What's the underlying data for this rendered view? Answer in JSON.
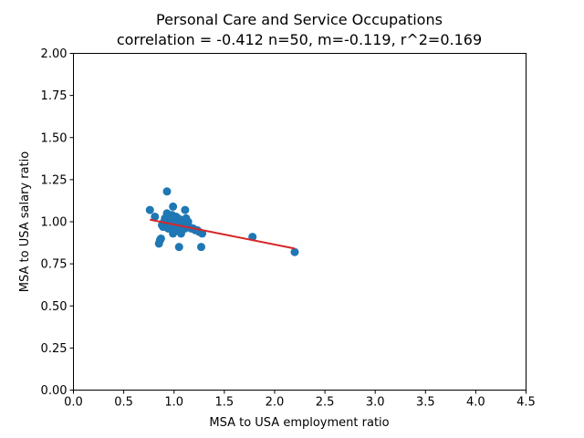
{
  "chart_data": {
    "type": "scatter",
    "title": "Personal Care and Service Occupations",
    "subtitle": "correlation = -0.412 n=50, m=-0.119, r^2=0.169",
    "xlabel": "MSA to USA employment ratio",
    "ylabel": "MSA to USA salary ratio",
    "xlim": [
      0.0,
      4.5
    ],
    "ylim": [
      0.0,
      2.0
    ],
    "xticks": [
      "0.0",
      "0.5",
      "1.0",
      "1.5",
      "2.0",
      "2.5",
      "3.0",
      "3.5",
      "4.0",
      "4.5"
    ],
    "yticks": [
      "0.00",
      "0.25",
      "0.50",
      "0.75",
      "1.00",
      "1.25",
      "1.50",
      "1.75",
      "2.00"
    ],
    "grid": false,
    "point_color": "#1f77b4",
    "line_color": "#d62728",
    "points": [
      {
        "x": 0.76,
        "y": 1.07
      },
      {
        "x": 0.81,
        "y": 1.03
      },
      {
        "x": 0.85,
        "y": 0.87
      },
      {
        "x": 0.86,
        "y": 0.89
      },
      {
        "x": 0.87,
        "y": 0.9
      },
      {
        "x": 0.88,
        "y": 0.98
      },
      {
        "x": 0.89,
        "y": 0.97
      },
      {
        "x": 0.9,
        "y": 1.0
      },
      {
        "x": 0.91,
        "y": 1.02
      },
      {
        "x": 0.92,
        "y": 0.99
      },
      {
        "x": 0.93,
        "y": 1.18
      },
      {
        "x": 0.93,
        "y": 1.05
      },
      {
        "x": 0.94,
        "y": 0.96
      },
      {
        "x": 0.95,
        "y": 1.03
      },
      {
        "x": 0.96,
        "y": 1.0
      },
      {
        "x": 0.97,
        "y": 0.98
      },
      {
        "x": 0.98,
        "y": 1.04
      },
      {
        "x": 0.99,
        "y": 0.93
      },
      {
        "x": 0.99,
        "y": 1.09
      },
      {
        "x": 1.0,
        "y": 1.01
      },
      {
        "x": 1.01,
        "y": 0.97
      },
      {
        "x": 1.02,
        "y": 0.99
      },
      {
        "x": 1.03,
        "y": 0.95
      },
      {
        "x": 1.04,
        "y": 1.02
      },
      {
        "x": 1.05,
        "y": 0.85
      },
      {
        "x": 1.05,
        "y": 0.98
      },
      {
        "x": 1.06,
        "y": 0.96
      },
      {
        "x": 1.07,
        "y": 1.0
      },
      {
        "x": 1.07,
        "y": 0.93
      },
      {
        "x": 1.08,
        "y": 1.01
      },
      {
        "x": 1.09,
        "y": 0.97
      },
      {
        "x": 1.1,
        "y": 0.99
      },
      {
        "x": 1.11,
        "y": 1.07
      },
      {
        "x": 1.11,
        "y": 0.96
      },
      {
        "x": 1.12,
        "y": 1.02
      },
      {
        "x": 1.13,
        "y": 0.98
      },
      {
        "x": 1.14,
        "y": 1.0
      },
      {
        "x": 1.15,
        "y": 0.97
      },
      {
        "x": 1.17,
        "y": 0.96
      },
      {
        "x": 1.19,
        "y": 0.96
      },
      {
        "x": 1.21,
        "y": 0.95
      },
      {
        "x": 1.23,
        "y": 0.95
      },
      {
        "x": 1.25,
        "y": 0.94
      },
      {
        "x": 1.27,
        "y": 0.85
      },
      {
        "x": 1.28,
        "y": 0.93
      },
      {
        "x": 1.0,
        "y": 0.94
      },
      {
        "x": 0.97,
        "y": 1.01
      },
      {
        "x": 1.02,
        "y": 1.03
      },
      {
        "x": 1.78,
        "y": 0.91
      },
      {
        "x": 2.2,
        "y": 0.82
      }
    ],
    "regression_line": {
      "x": [
        0.76,
        2.2
      ],
      "y": [
        1.012,
        0.841
      ]
    }
  }
}
